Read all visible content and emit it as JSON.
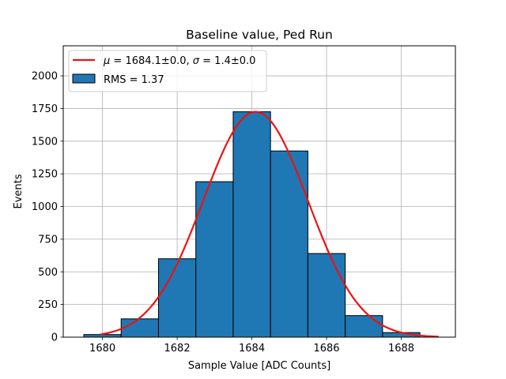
{
  "chart_data": {
    "type": "bar",
    "title": "Baseline value, Ped Run",
    "xlabel": "Sample Value [ADC Counts]",
    "ylabel": "Events",
    "xlim": [
      1678.95,
      1689.45
    ],
    "ylim": [
      0,
      2230
    ],
    "grid": true,
    "legend_position": "top-left",
    "xticks": [
      1680,
      1682,
      1684,
      1686,
      1688
    ],
    "yticks": [
      0,
      250,
      500,
      750,
      1000,
      1250,
      1500,
      1750,
      2000
    ],
    "histogram": {
      "name": "RMS = 1.37",
      "color": "#1f77b4",
      "edgecolor": "#000000",
      "bin_centers": [
        1680,
        1681,
        1682,
        1683,
        1684,
        1685,
        1686,
        1687,
        1688
      ],
      "bin_width": 1,
      "counts": [
        20,
        140,
        600,
        1190,
        1725,
        1425,
        640,
        165,
        35
      ]
    },
    "fit": {
      "name": "μ = 1684.1±0.0, σ = 1.4±0.0",
      "color": "#ee1111",
      "type": "gaussian",
      "mu": 1684.1,
      "sigma": 1.4,
      "amplitude": 1725,
      "x_range": [
        1679.95,
        1689
      ]
    }
  },
  "legend": {
    "fit_prefix": "μ",
    "fit_mid": " = 1684.1±0.0, ",
    "fit_sigma": "σ",
    "fit_suffix": " = 1.4±0.0",
    "hist_label": "RMS = 1.37"
  }
}
